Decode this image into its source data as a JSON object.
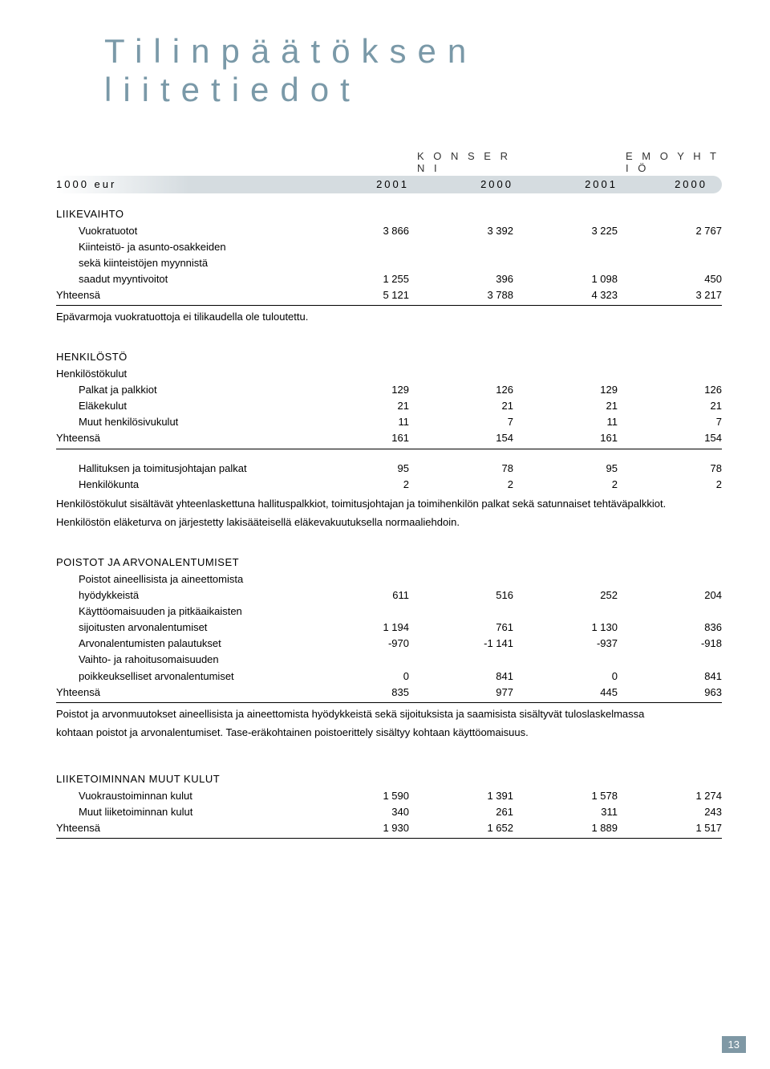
{
  "title_line1": "Tilinpäätöksen",
  "title_line2": "liitetiedot",
  "header": {
    "group1": "K O N S E R N I",
    "group2": "E M O Y H T I Ö",
    "unit": "1000 eur",
    "years": [
      "2001",
      "2000",
      "2001",
      "2000"
    ]
  },
  "sections": {
    "liikevaihto": {
      "title": "LIIKEVAIHTO",
      "rows": [
        {
          "label": "Vuokratuotot",
          "v": [
            "3 866",
            "3 392",
            "3 225",
            "2 767"
          ]
        },
        {
          "label": "Kiinteistö- ja asunto-osakkeiden",
          "v": [
            "",
            "",
            "",
            ""
          ]
        },
        {
          "label": "sekä kiinteistöjen myynnistä",
          "v": [
            "",
            "",
            "",
            ""
          ]
        },
        {
          "label": "saadut myyntivoitot",
          "v": [
            "1 255",
            "396",
            "1 098",
            "450"
          ]
        }
      ],
      "total": {
        "label": "Yhteensä",
        "v": [
          "5 121",
          "3 788",
          "4 323",
          "3 217"
        ]
      },
      "note": "Epävarmoja vuokratuottoja ei tilikaudella ole tuloutettu."
    },
    "henkilosto": {
      "title": "HENKILÖSTÖ",
      "subtitle": "Henkilöstökulut",
      "rows": [
        {
          "label": "Palkat ja palkkiot",
          "v": [
            "129",
            "126",
            "129",
            "126"
          ]
        },
        {
          "label": "Eläkekulut",
          "v": [
            "21",
            "21",
            "21",
            "21"
          ]
        },
        {
          "label": "Muut henkilösivukulut",
          "v": [
            "11",
            "7",
            "11",
            "7"
          ]
        }
      ],
      "total": {
        "label": "Yhteensä",
        "v": [
          "161",
          "154",
          "161",
          "154"
        ]
      },
      "rows2": [
        {
          "label": "Hallituksen ja toimitusjohtajan palkat",
          "v": [
            "95",
            "78",
            "95",
            "78"
          ]
        },
        {
          "label": "Henkilökunta",
          "v": [
            "2",
            "2",
            "2",
            "2"
          ]
        }
      ],
      "note1": "Henkilöstökulut sisältävät yhteenlaskettuna hallituspalkkiot, toimitusjohtajan ja toimihenkilön palkat sekä satunnaiset tehtäväpalkkiot.",
      "note2": "Henkilöstön eläketurva on järjestetty lakisääteisellä eläkevakuutuksella normaaliehdoin."
    },
    "poistot": {
      "title": "POISTOT JA ARVONALENTUMISET",
      "rows": [
        {
          "label": "Poistot aineellisista ja aineettomista",
          "v": [
            "",
            "",
            "",
            ""
          ]
        },
        {
          "label": "hyödykkeistä",
          "v": [
            "611",
            "516",
            "252",
            "204"
          ]
        },
        {
          "label": "Käyttöomaisuuden ja pitkäaikaisten",
          "v": [
            "",
            "",
            "",
            ""
          ]
        },
        {
          "label": "sijoitusten arvonalentumiset",
          "v": [
            "1 194",
            "761",
            "1 130",
            "836"
          ]
        },
        {
          "label": "Arvonalentumisten palautukset",
          "v": [
            "-970",
            "-1 141",
            "-937",
            "-918"
          ]
        },
        {
          "label": "Vaihto- ja rahoitusomaisuuden",
          "v": [
            "",
            "",
            "",
            ""
          ]
        },
        {
          "label": "poikkeukselliset arvonalentumiset",
          "v": [
            "0",
            "841",
            "0",
            "841"
          ]
        }
      ],
      "total": {
        "label": "Yhteensä",
        "v": [
          "835",
          "977",
          "445",
          "963"
        ]
      },
      "note1": "Poistot ja arvonmuutokset aineellisista ja aineettomista hyödykkeistä sekä sijoituksista ja saamisista sisältyvät tuloslaskelmassa",
      "note2": "kohtaan poistot ja arvonalentumiset. Tase-eräkohtainen poistoerittely sisältyy kohtaan käyttöomaisuus."
    },
    "muutkulut": {
      "title": "LIIKETOIMINNAN MUUT KULUT",
      "rows": [
        {
          "label": "Vuokraustoiminnan kulut",
          "v": [
            "1 590",
            "1 391",
            "1 578",
            "1 274"
          ]
        },
        {
          "label": "Muut liiketoiminnan kulut",
          "v": [
            "340",
            "261",
            "311",
            "243"
          ]
        }
      ],
      "total": {
        "label": "Yhteensä",
        "v": [
          "1 930",
          "1 652",
          "1 889",
          "1 517"
        ]
      }
    }
  },
  "page_number": "13"
}
